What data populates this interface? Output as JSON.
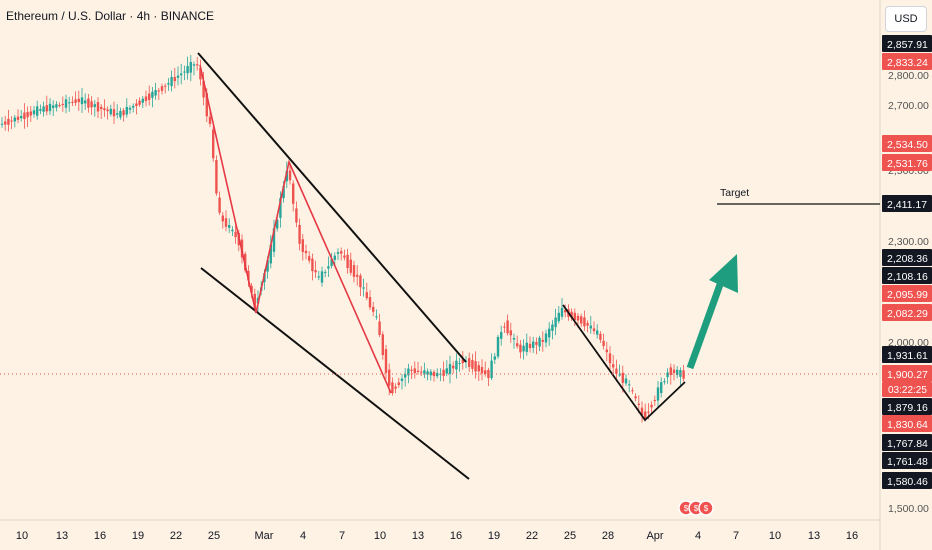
{
  "title": "Ethereum / U.S. Dollar · 4h · BINANCE",
  "currency_button": "USD",
  "annotation": "Target",
  "countdown": "03:22:25",
  "chart_data": {
    "type": "candlestick",
    "x_ticks": [
      "10",
      "13",
      "16",
      "19",
      "22",
      "25",
      "Mar",
      "4",
      "7",
      "10",
      "13",
      "16",
      "19",
      "22",
      "25",
      "28",
      "Apr",
      "4",
      "7",
      "10",
      "13",
      "16"
    ],
    "y_axis_ticks": [
      "2,800.00",
      "2,700.00",
      "2,600.00",
      "2,500.00",
      "2,300.00",
      "2,000.00",
      "1,500.00"
    ],
    "price_labels": [
      {
        "value": "2,857.91",
        "style": "dark"
      },
      {
        "value": "2,833.24",
        "style": "red"
      },
      {
        "value": "2,534.50",
        "style": "red"
      },
      {
        "value": "2,531.76",
        "style": "red"
      },
      {
        "value": "2,411.17",
        "style": "dark"
      },
      {
        "value": "2,208.36",
        "style": "dark"
      },
      {
        "value": "2,108.16",
        "style": "dark"
      },
      {
        "value": "2,095.99",
        "style": "red"
      },
      {
        "value": "2,082.29",
        "style": "red"
      },
      {
        "value": "1,931.61",
        "style": "dark"
      },
      {
        "value": "1,900.27",
        "style": "red"
      },
      {
        "value": "1,879.16",
        "style": "dark"
      },
      {
        "value": "1,830.64",
        "style": "red"
      },
      {
        "value": "1,767.84",
        "style": "dark"
      },
      {
        "value": "1,761.48",
        "style": "dark"
      },
      {
        "value": "1,580.46",
        "style": "dark"
      }
    ],
    "current_price": 1900.27,
    "target_price": 2411.17,
    "colors": {
      "up": "#26a69a",
      "down": "#ef5350",
      "background": "#fdf2e3",
      "arrow": "#1e9e7e"
    }
  }
}
